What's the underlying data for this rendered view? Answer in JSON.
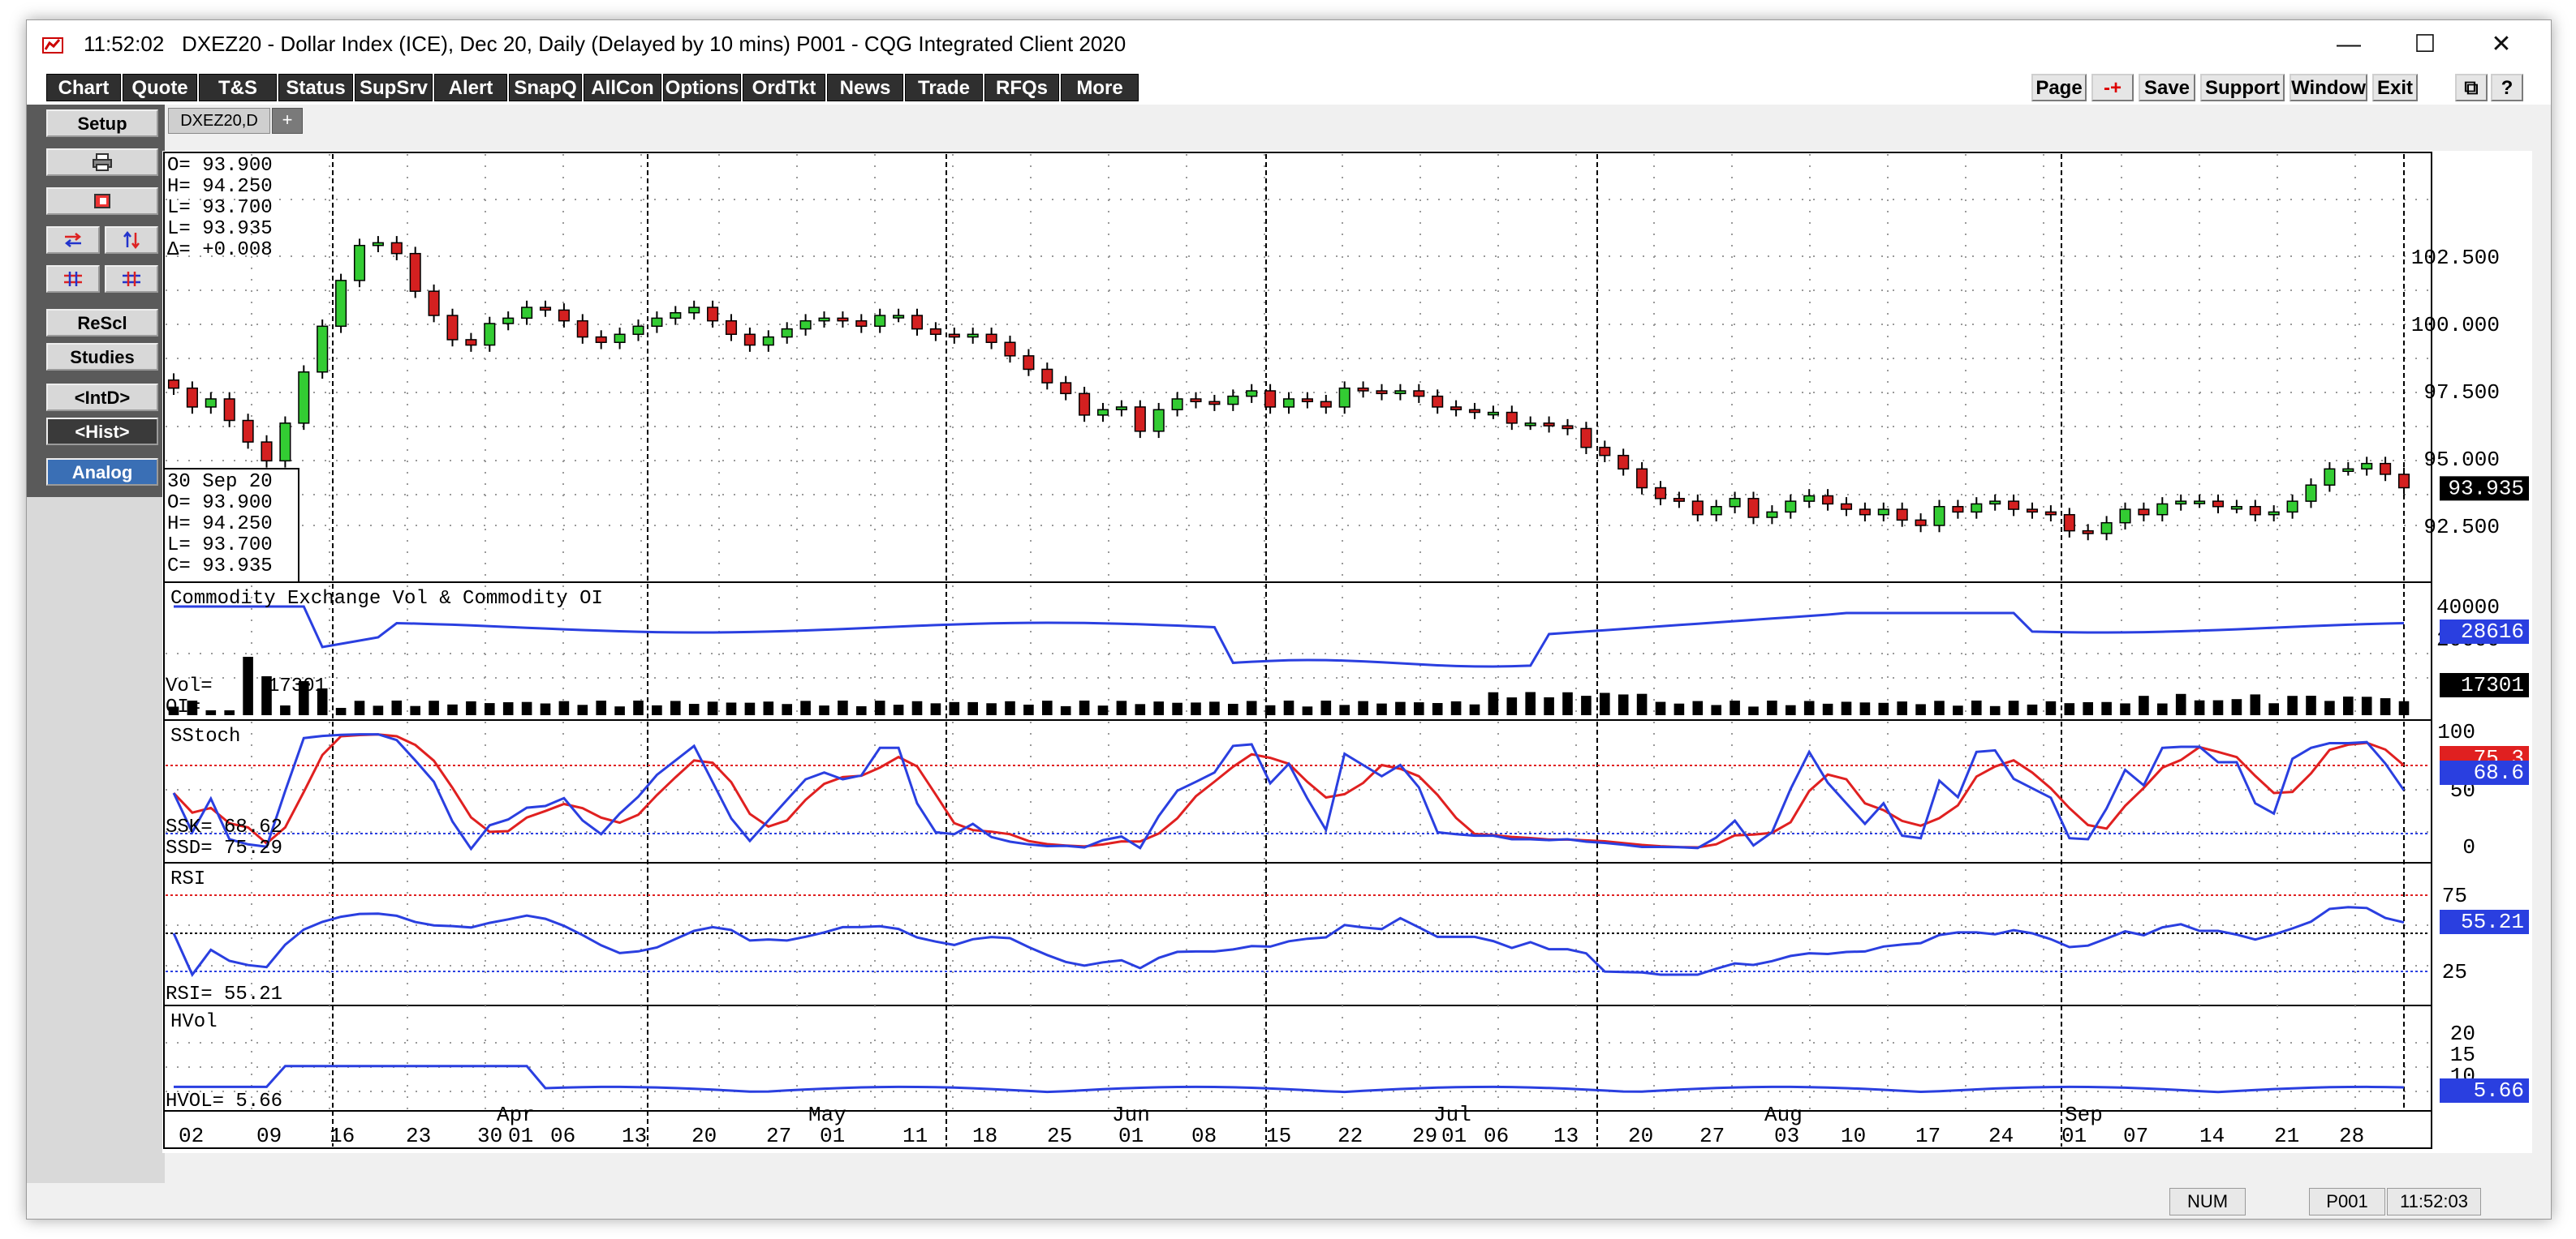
{
  "titlebar": {
    "time": "11:52:02",
    "title": "DXEZ20 - Dollar Index (ICE), Dec 20, Daily (Delayed by 10 mins)   P001 - CQG Integrated Client 2020"
  },
  "menu_left": [
    "Chart",
    "Quote",
    "T&S",
    "Status",
    "SupSrv",
    "Alert",
    "SnapQ",
    "AllCon",
    "Options",
    "OrdTkt",
    "News",
    "Trade",
    "RFQs",
    "More"
  ],
  "menu_right": [
    "Page",
    "-+",
    "Save",
    "Support",
    "Window",
    "Exit"
  ],
  "left_panel": {
    "setup": "Setup",
    "rescl": "ReScl",
    "studies": "Studies",
    "intd": "<IntD>",
    "hist": "<Hist>",
    "analog": "Analog"
  },
  "tab": {
    "label": "DXEZ20,D",
    "add": "+"
  },
  "ohlc_top": {
    "o": "O= 93.900",
    "h": "H= 94.250",
    "l": "L= 93.700",
    "c": "L= 93.935",
    "d": "Δ= +0.008"
  },
  "cursor_box": {
    "date": "30 Sep 20",
    "o": "O=   93.900",
    "h": "H=   94.250",
    "l": "L=   93.700",
    "c": "C=   93.935"
  },
  "panels": {
    "vol": {
      "title": "Commodity Exchange Vol & Commodity OI",
      "vol_label": "Vol=",
      "vol_value": "17301",
      "oi_label": "OI="
    },
    "sstoch": {
      "title": "SStoch",
      "ssk": "SSK=    68.62",
      "ssd": "SSD=    75.29"
    },
    "rsi": {
      "title": "RSI",
      "value_label": "RSI=   55.21"
    },
    "hvol": {
      "title": "HVol",
      "value_label": "HVOL=      5.66"
    }
  },
  "price_axis": [
    "102.500",
    "100.000",
    "97.500",
    "95.000",
    "92.500"
  ],
  "price_last": "93.935",
  "vol_axis": [
    "40000",
    "20000"
  ],
  "vol_badges": {
    "oi": "28616",
    "vol": "17301"
  },
  "sstoch_axis": [
    "100",
    "50",
    "0"
  ],
  "sstoch_badges": {
    "top": "75.3",
    "bottom": "68.6"
  },
  "rsi_axis": [
    "75",
    "25"
  ],
  "rsi_badge": "55.21",
  "hvol_axis": [
    "20",
    "15",
    "10"
  ],
  "hvol_badge": "5.66",
  "months": [
    "Apr",
    "May",
    "Jun",
    "Jul",
    "Aug",
    "Sep"
  ],
  "days": [
    "02",
    "09",
    "16",
    "23",
    "30",
    "01",
    "06",
    "13",
    "20",
    "27",
    "01",
    "11",
    "18",
    "25",
    "01",
    "08",
    "15",
    "22",
    "29",
    "01",
    "06",
    "13",
    "20",
    "27",
    "03",
    "10",
    "17",
    "24",
    "01",
    "07",
    "14",
    "21",
    "28"
  ],
  "status": {
    "num": "NUM",
    "page": "P001",
    "time": "11:52:03"
  },
  "colors": {
    "bar_up": "#33cc33",
    "bar_down": "#d42020",
    "line_blue": "#2a3fe0",
    "line_red": "#e02020",
    "badge_blue": "#2a3fe0",
    "badge_black": "#000000"
  },
  "chart_data": {
    "type": "candlestick",
    "title": "DXEZ20 - Dollar Index (ICE), Dec 20, Daily",
    "price_ticks": [
      102.5,
      100.0,
      97.5,
      95.0,
      92.5
    ],
    "closes": [
      97.6,
      96.9,
      97.2,
      96.4,
      95.6,
      94.9,
      96.3,
      98.2,
      99.9,
      101.6,
      102.9,
      103.0,
      102.6,
      101.2,
      100.3,
      99.4,
      99.2,
      100.0,
      100.2,
      100.6,
      100.5,
      100.1,
      99.5,
      99.3,
      99.6,
      99.9,
      100.2,
      100.4,
      100.6,
      100.1,
      99.6,
      99.2,
      99.5,
      99.8,
      100.1,
      100.2,
      100.1,
      99.9,
      100.3,
      100.3,
      99.8,
      99.6,
      99.5,
      99.6,
      99.3,
      98.8,
      98.3,
      97.8,
      97.4,
      96.6,
      96.8,
      96.9,
      96.0,
      96.8,
      97.2,
      97.1,
      97.0,
      97.3,
      97.5,
      96.9,
      97.2,
      97.1,
      96.9,
      97.6,
      97.5,
      97.4,
      97.5,
      97.3,
      96.9,
      96.8,
      96.7,
      96.7,
      96.3,
      96.3,
      96.2,
      96.1,
      95.4,
      95.1,
      94.6,
      93.9,
      93.5,
      93.4,
      92.9,
      93.2,
      93.5,
      92.8,
      93.0,
      93.4,
      93.6,
      93.3,
      93.1,
      92.9,
      93.1,
      92.7,
      92.5,
      93.2,
      93.0,
      93.3,
      93.4,
      93.1,
      93.0,
      92.9,
      92.3,
      92.2,
      92.6,
      93.1,
      92.9,
      93.3,
      93.4,
      93.4,
      93.2,
      93.2,
      92.9,
      93.0,
      93.4,
      94.0,
      94.6,
      94.6,
      94.8,
      94.4,
      93.9
    ],
    "rsi_last": 55.21,
    "sstoch_ssk": 68.62,
    "sstoch_ssd": 75.29,
    "hvol_last": 5.66,
    "volume_last": 17301,
    "open_interest_last": 28616
  }
}
